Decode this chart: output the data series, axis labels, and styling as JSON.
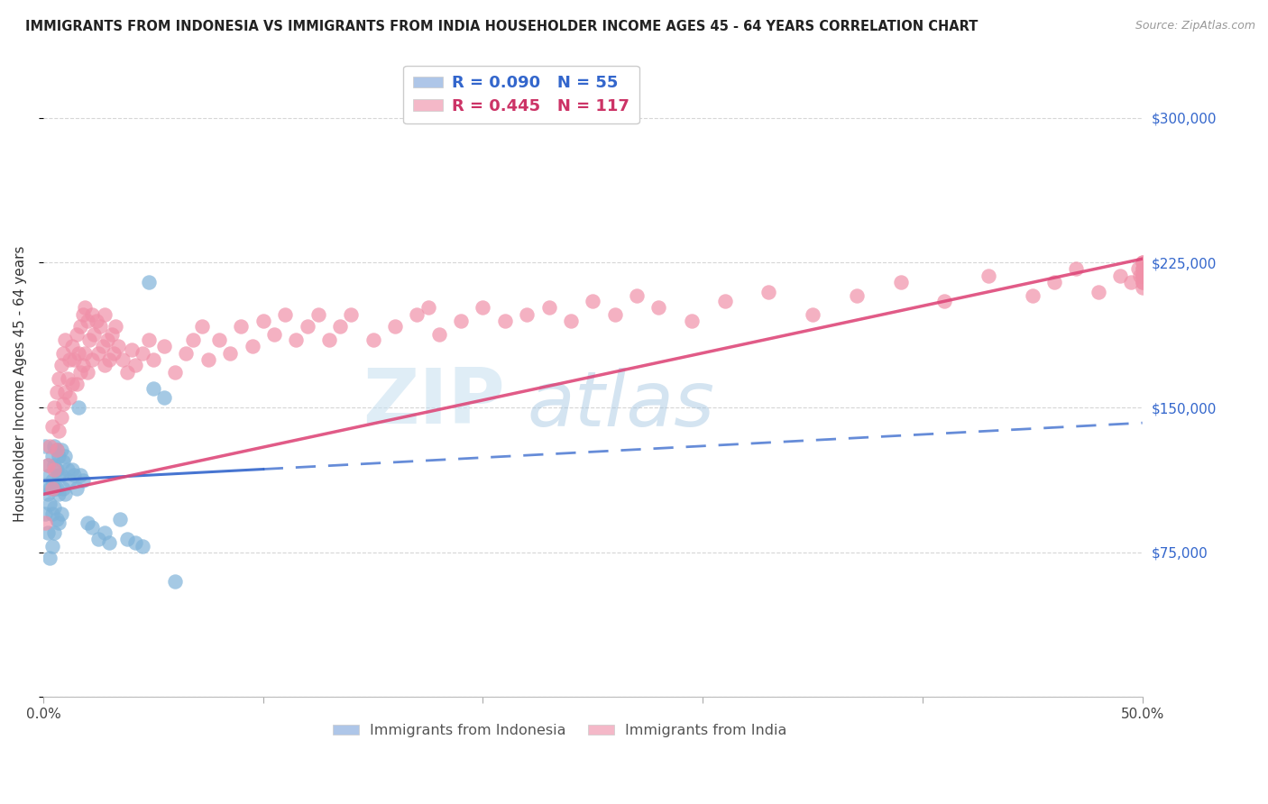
{
  "title": "IMMIGRANTS FROM INDONESIA VS IMMIGRANTS FROM INDIA HOUSEHOLDER INCOME AGES 45 - 64 YEARS CORRELATION CHART",
  "source": "Source: ZipAtlas.com",
  "ylabel": "Householder Income Ages 45 - 64 years",
  "x_min": 0.0,
  "x_max": 0.5,
  "y_min": 0,
  "y_max": 325000,
  "x_ticks": [
    0.0,
    0.1,
    0.2,
    0.3,
    0.4,
    0.5
  ],
  "x_tick_labels": [
    "0.0%",
    "",
    "",
    "",
    "",
    "50.0%"
  ],
  "y_ticks": [
    0,
    75000,
    150000,
    225000,
    300000
  ],
  "y_tick_labels_right": [
    "",
    "$75,000",
    "$150,000",
    "$225,000",
    "$300,000"
  ],
  "indonesia_color": "#7fb3d9",
  "india_color": "#f090a8",
  "indonesia_trend_color": "#3366cc",
  "india_trend_color": "#dd4477",
  "indonesia_trend_x": [
    0.0,
    0.5
  ],
  "indonesia_trend_y": [
    112000,
    142000
  ],
  "india_trend_x": [
    0.0,
    0.5
  ],
  "india_trend_y": [
    105000,
    227000
  ],
  "watermark_zip": "ZIP",
  "watermark_atlas": "atlas",
  "background_color": "#ffffff",
  "grid_color": "#cccccc",
  "legend1_label": "R = 0.090   N = 55",
  "legend2_label": "R = 0.445   N = 117",
  "legend1_color": "#3366cc",
  "legend2_color": "#cc3366",
  "legend1_patch": "#aec6e8",
  "legend2_patch": "#f4b8c8",
  "bottom_legend1": "Immigrants from Indonesia",
  "bottom_legend2": "Immigrants from India",
  "indonesia_x": [
    0.001,
    0.001,
    0.001,
    0.002,
    0.002,
    0.002,
    0.003,
    0.003,
    0.003,
    0.003,
    0.004,
    0.004,
    0.004,
    0.004,
    0.005,
    0.005,
    0.005,
    0.005,
    0.005,
    0.006,
    0.006,
    0.006,
    0.006,
    0.007,
    0.007,
    0.007,
    0.007,
    0.008,
    0.008,
    0.008,
    0.009,
    0.009,
    0.01,
    0.01,
    0.011,
    0.012,
    0.013,
    0.014,
    0.015,
    0.016,
    0.017,
    0.018,
    0.02,
    0.022,
    0.025,
    0.028,
    0.03,
    0.035,
    0.038,
    0.042,
    0.045,
    0.048,
    0.05,
    0.055,
    0.06
  ],
  "indonesia_y": [
    110000,
    95000,
    130000,
    120000,
    105000,
    85000,
    115000,
    108000,
    100000,
    72000,
    125000,
    112000,
    95000,
    78000,
    130000,
    120000,
    108000,
    98000,
    85000,
    128000,
    118000,
    108000,
    92000,
    125000,
    115000,
    105000,
    90000,
    128000,
    115000,
    95000,
    122000,
    108000,
    125000,
    105000,
    118000,
    112000,
    118000,
    115000,
    108000,
    150000,
    115000,
    112000,
    90000,
    88000,
    82000,
    85000,
    80000,
    92000,
    82000,
    80000,
    78000,
    215000,
    160000,
    155000,
    60000
  ],
  "india_x": [
    0.001,
    0.002,
    0.003,
    0.004,
    0.004,
    0.005,
    0.005,
    0.006,
    0.006,
    0.007,
    0.007,
    0.008,
    0.008,
    0.009,
    0.009,
    0.01,
    0.01,
    0.011,
    0.012,
    0.012,
    0.013,
    0.013,
    0.014,
    0.015,
    0.015,
    0.016,
    0.017,
    0.017,
    0.018,
    0.018,
    0.019,
    0.019,
    0.02,
    0.02,
    0.021,
    0.022,
    0.022,
    0.023,
    0.024,
    0.025,
    0.026,
    0.027,
    0.028,
    0.028,
    0.029,
    0.03,
    0.031,
    0.032,
    0.033,
    0.034,
    0.036,
    0.038,
    0.04,
    0.042,
    0.045,
    0.048,
    0.05,
    0.055,
    0.06,
    0.065,
    0.068,
    0.072,
    0.075,
    0.08,
    0.085,
    0.09,
    0.095,
    0.1,
    0.105,
    0.11,
    0.115,
    0.12,
    0.125,
    0.13,
    0.135,
    0.14,
    0.15,
    0.16,
    0.17,
    0.175,
    0.18,
    0.19,
    0.2,
    0.21,
    0.22,
    0.23,
    0.24,
    0.25,
    0.26,
    0.27,
    0.28,
    0.295,
    0.31,
    0.33,
    0.35,
    0.37,
    0.39,
    0.41,
    0.43,
    0.45,
    0.46,
    0.47,
    0.48,
    0.49,
    0.495,
    0.498,
    0.499,
    0.5,
    0.5,
    0.5,
    0.5,
    0.5,
    0.5,
    0.5,
    0.5,
    0.5,
    0.5
  ],
  "india_y": [
    90000,
    120000,
    130000,
    140000,
    108000,
    150000,
    118000,
    158000,
    128000,
    165000,
    138000,
    172000,
    145000,
    178000,
    152000,
    185000,
    158000,
    165000,
    175000,
    155000,
    182000,
    162000,
    175000,
    188000,
    162000,
    178000,
    192000,
    168000,
    198000,
    172000,
    202000,
    178000,
    195000,
    168000,
    185000,
    198000,
    175000,
    188000,
    195000,
    178000,
    192000,
    182000,
    198000,
    172000,
    185000,
    175000,
    188000,
    178000,
    192000,
    182000,
    175000,
    168000,
    180000,
    172000,
    178000,
    185000,
    175000,
    182000,
    168000,
    178000,
    185000,
    192000,
    175000,
    185000,
    178000,
    192000,
    182000,
    195000,
    188000,
    198000,
    185000,
    192000,
    198000,
    185000,
    192000,
    198000,
    185000,
    192000,
    198000,
    202000,
    188000,
    195000,
    202000,
    195000,
    198000,
    202000,
    195000,
    205000,
    198000,
    208000,
    202000,
    195000,
    205000,
    210000,
    198000,
    208000,
    215000,
    205000,
    218000,
    208000,
    215000,
    222000,
    210000,
    218000,
    215000,
    222000,
    218000,
    225000,
    215000,
    222000,
    218000,
    225000,
    218000,
    215000,
    222000,
    218000,
    212000
  ]
}
